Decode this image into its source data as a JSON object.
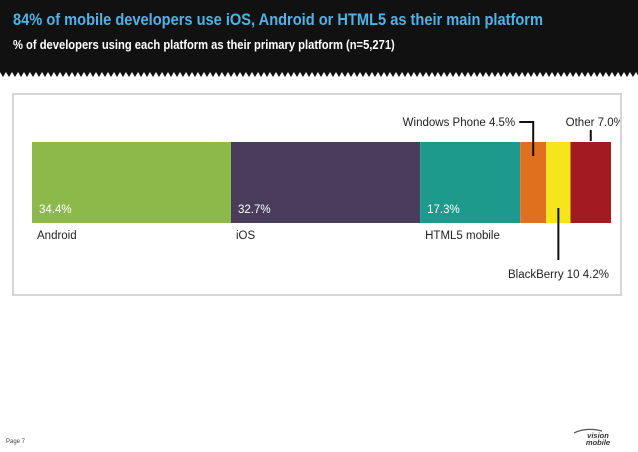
{
  "header": {
    "title": "84% of mobile developers use iOS, Android or HTML5 as their main platform",
    "subtitle": "% of developers using each platform as their primary platform (n=5,271)"
  },
  "chart_data": {
    "type": "bar",
    "subtype": "100% stacked horizontal bar",
    "title": "84% of mobile developers use iOS, Android or HTML5 as their main platform",
    "subtitle": "% of developers using each platform as their primary platform (n=5,271)",
    "xlabel": "",
    "ylabel": "",
    "xlim": [
      0,
      100
    ],
    "legend": "none",
    "grid": false,
    "categories": [
      "Android",
      "iOS",
      "HTML5 mobile",
      "Windows Phone",
      "BlackBerry 10",
      "Other"
    ],
    "values": [
      34.4,
      32.7,
      17.3,
      4.5,
      4.2,
      7.0
    ],
    "labels": [
      "34.4%",
      "32.7%",
      "17.3%",
      "4.5%",
      "4.2%",
      "7.0%"
    ],
    "colors": [
      "#8db84a",
      "#4a3d5c",
      "#1e9a8c",
      "#e07020",
      "#f5e51c",
      "#a31a22"
    ]
  },
  "footer": {
    "page": "Page 7",
    "logo_text": "vision mobile"
  }
}
